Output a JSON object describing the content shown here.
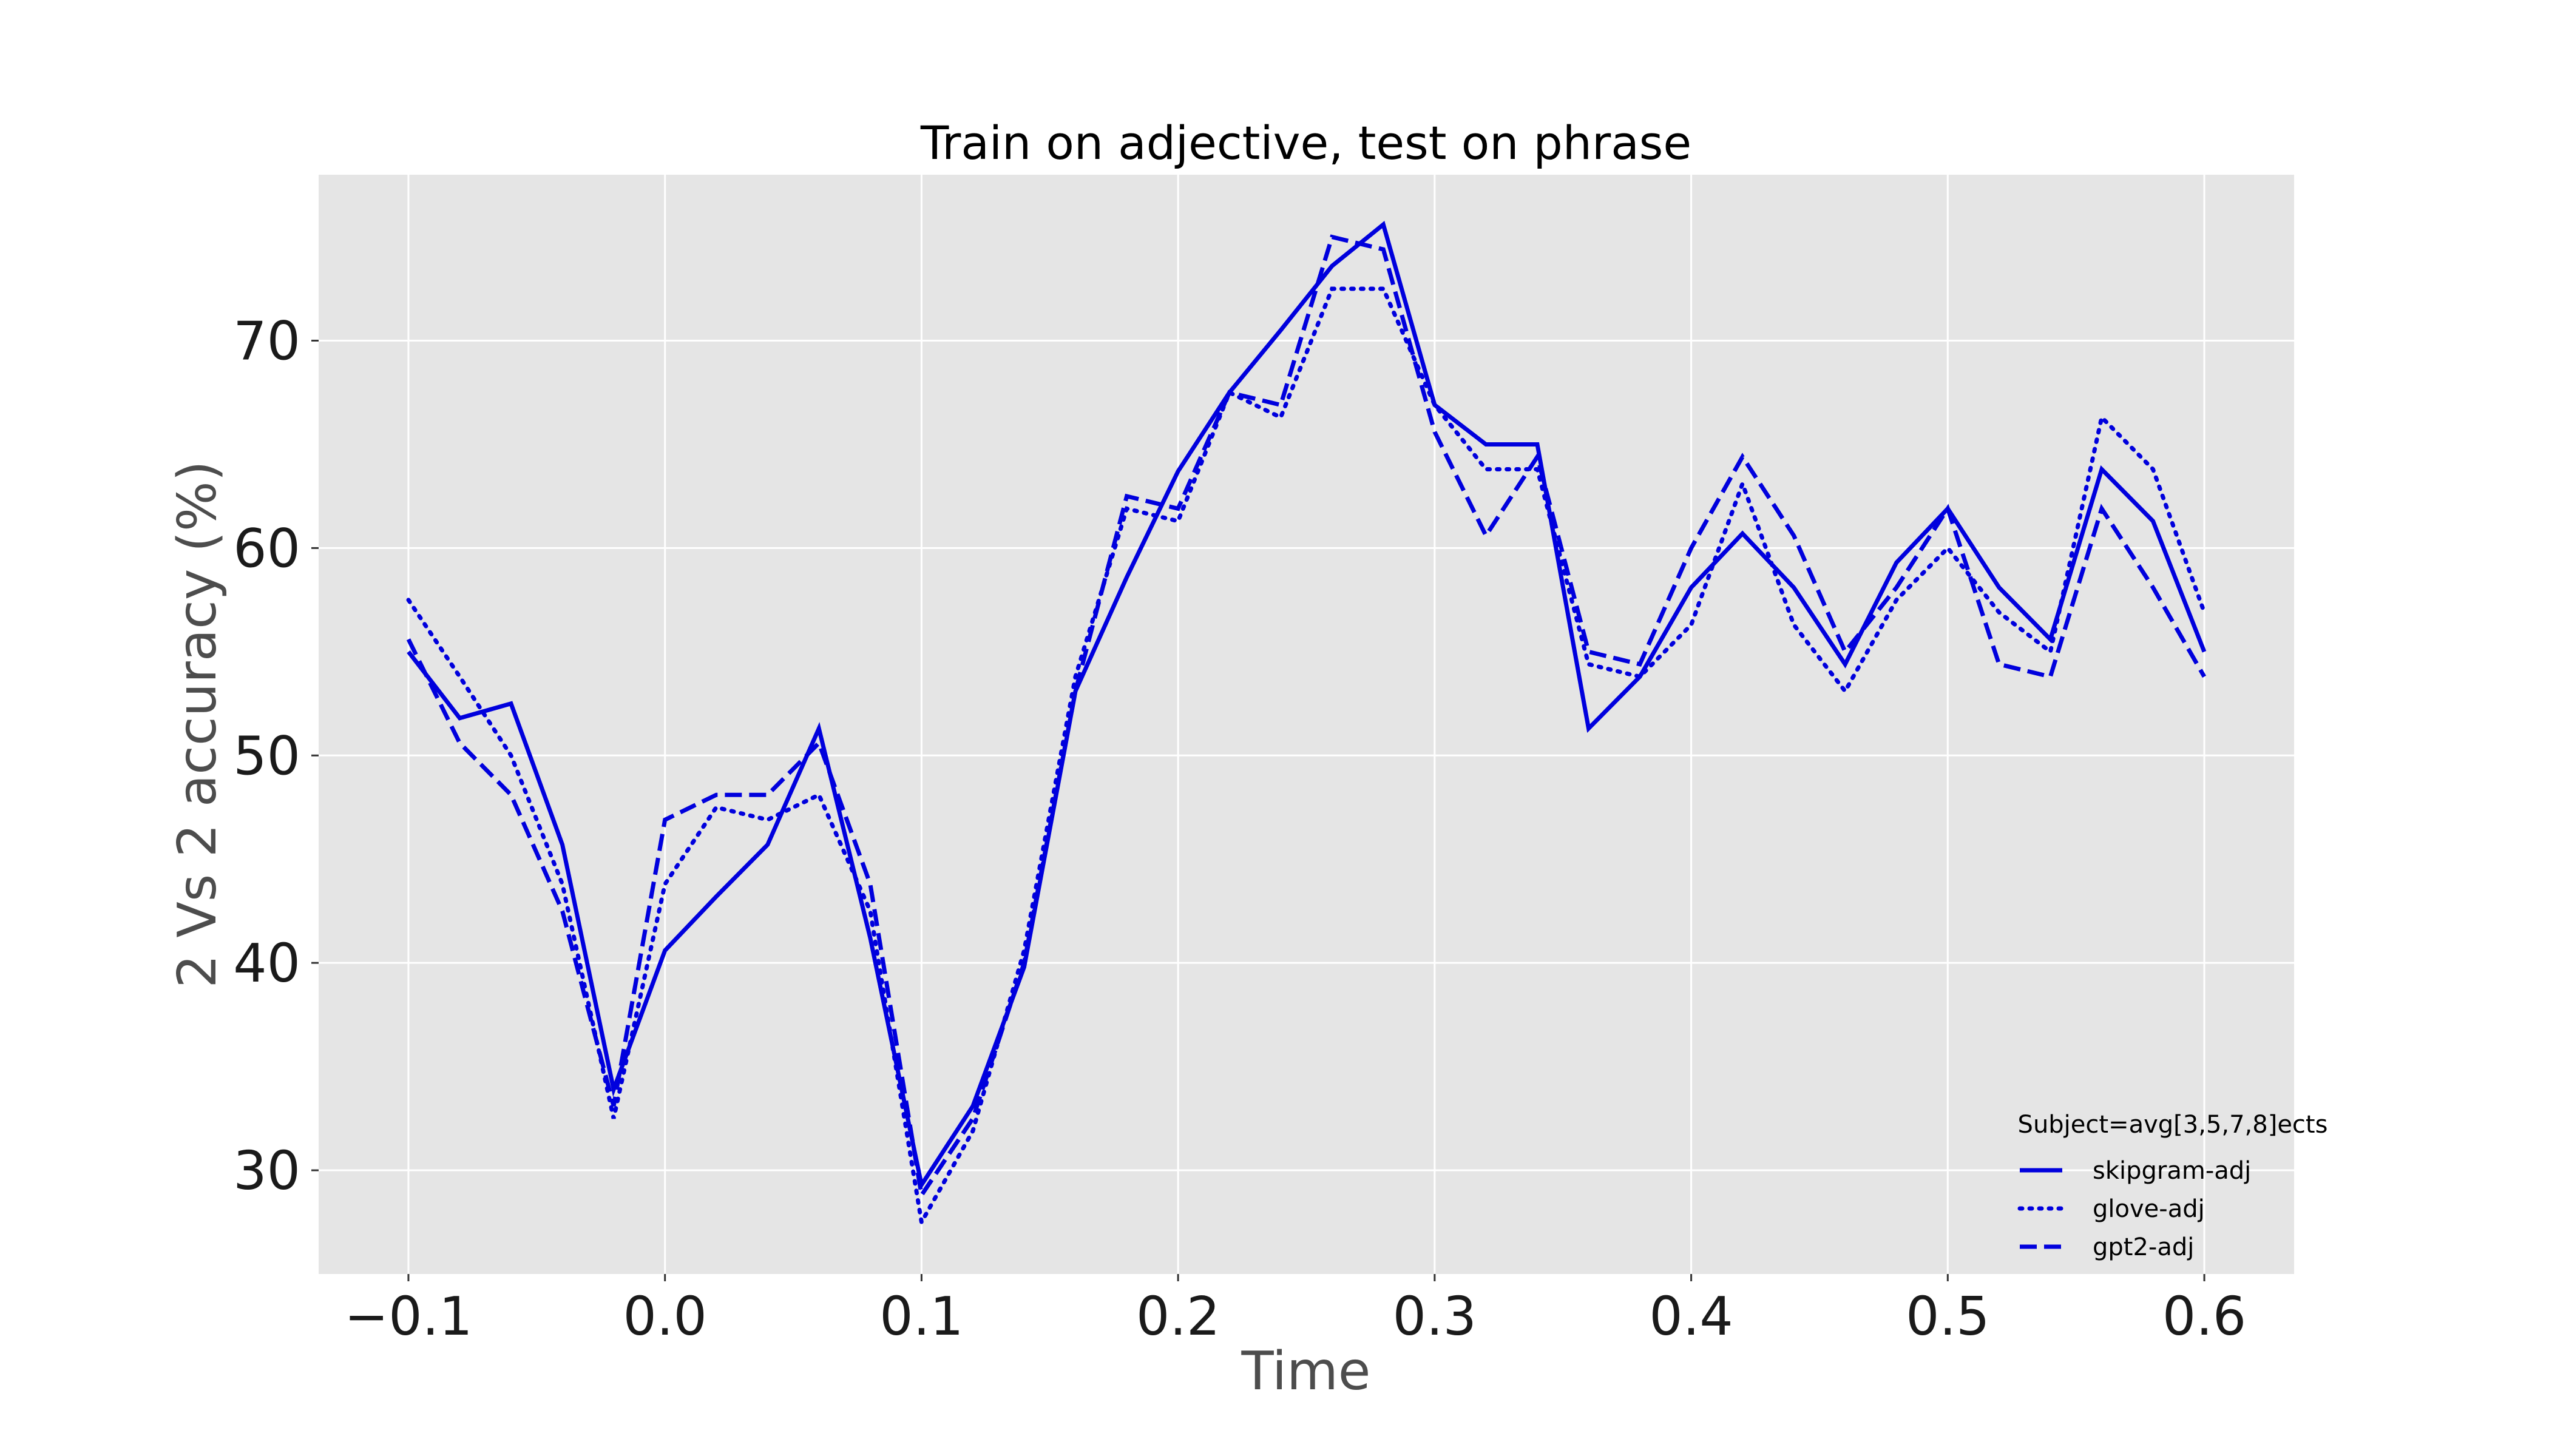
{
  "chart_data": {
    "type": "line",
    "title": "Train on adjective, test on phrase",
    "xlabel": "Time",
    "ylabel": "2 Vs 2 accuracy (%)",
    "xlim": [
      -0.135,
      0.635
    ],
    "ylim": [
      25,
      78
    ],
    "xticks": [
      -0.1,
      0.0,
      0.1,
      0.2,
      0.3,
      0.4,
      0.5,
      0.6
    ],
    "xtick_labels": [
      "−0.1",
      "0.0",
      "0.1",
      "0.2",
      "0.3",
      "0.4",
      "0.5",
      "0.6"
    ],
    "yticks": [
      30,
      40,
      50,
      60,
      70
    ],
    "ytick_labels": [
      "30",
      "40",
      "50",
      "60",
      "70"
    ],
    "grid": true,
    "background": "#e5e5e5",
    "line_color": "#0000dd",
    "legend": {
      "title": "Subject=avg[3,5,7,8]ects",
      "position": "lower-right"
    },
    "x": [
      -0.1,
      -0.08,
      -0.06,
      -0.04,
      -0.02,
      0.0,
      0.02,
      0.04,
      0.06,
      0.08,
      0.1,
      0.12,
      0.14,
      0.16,
      0.18,
      0.2,
      0.22,
      0.24,
      0.26,
      0.28,
      0.3,
      0.32,
      0.34,
      0.36,
      0.38,
      0.4,
      0.42,
      0.44,
      0.46,
      0.48,
      0.5,
      0.52,
      0.54,
      0.56,
      0.58,
      0.6
    ],
    "series": [
      {
        "name": "skipgram-adj",
        "style": "solid",
        "values": [
          55.0,
          51.8,
          52.5,
          45.7,
          33.9,
          40.6,
          43.2,
          45.7,
          51.3,
          41.2,
          29.3,
          33.1,
          39.8,
          53.1,
          58.6,
          63.7,
          67.5,
          70.5,
          73.6,
          75.6,
          66.9,
          65.0,
          65.0,
          51.3,
          53.8,
          58.1,
          60.7,
          58.1,
          54.4,
          59.3,
          61.9,
          58.1,
          55.6,
          63.8,
          61.3,
          55.0
        ]
      },
      {
        "name": "glove-adj",
        "style": "dotted",
        "values": [
          57.5,
          53.8,
          50.0,
          43.8,
          32.5,
          43.8,
          47.5,
          46.9,
          48.1,
          42.5,
          27.5,
          31.9,
          40.6,
          53.8,
          61.9,
          61.3,
          67.5,
          66.3,
          72.5,
          72.5,
          66.9,
          63.8,
          63.8,
          54.4,
          53.8,
          56.3,
          63.1,
          56.3,
          53.1,
          57.5,
          60.0,
          56.9,
          55.0,
          66.3,
          63.8,
          56.9
        ]
      },
      {
        "name": "gpt2-adj",
        "style": "dashed",
        "values": [
          55.6,
          50.6,
          48.1,
          42.5,
          33.1,
          46.9,
          48.1,
          48.1,
          50.6,
          43.8,
          28.8,
          32.5,
          40.0,
          53.1,
          62.5,
          61.9,
          67.5,
          66.9,
          75.0,
          74.4,
          65.6,
          60.6,
          64.4,
          55.0,
          54.4,
          60.0,
          64.4,
          60.6,
          55.0,
          58.1,
          61.9,
          54.4,
          53.8,
          61.9,
          58.1,
          53.8
        ]
      }
    ]
  }
}
